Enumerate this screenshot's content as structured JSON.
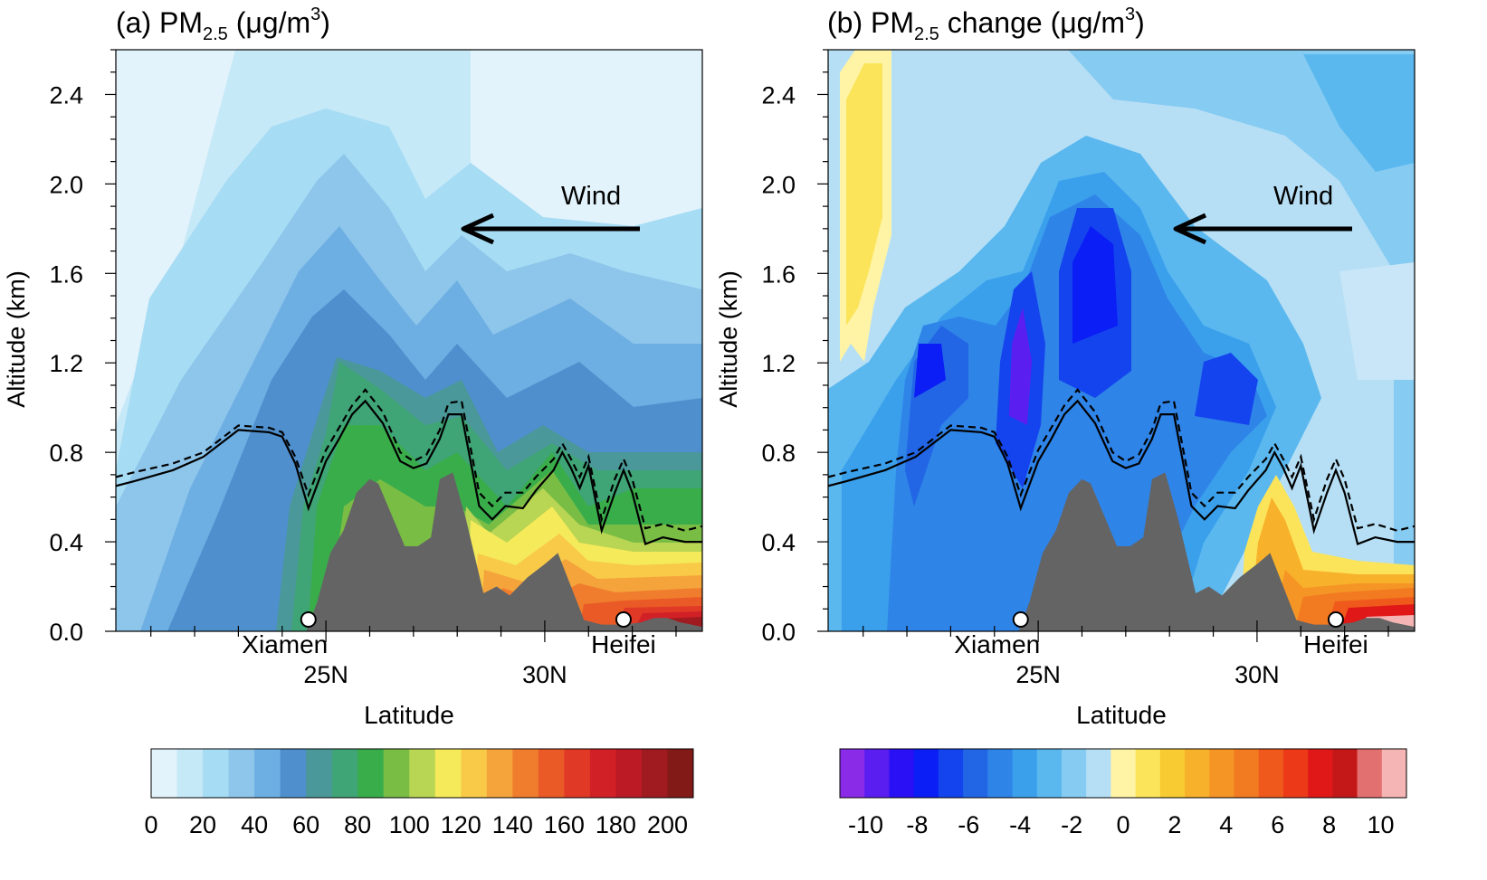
{
  "chart_data": [
    {
      "type": "heatmap",
      "title": {
        "prefix": "(a) PM",
        "sub": "2.5",
        "unit": " (μg/m",
        "sup": "3",
        "close": ")"
      },
      "xlabel": "Latitude",
      "ylabel": "Altitude (km)",
      "xlim": [
        20.2,
        33.6
      ],
      "ylim": [
        0,
        2.6
      ],
      "xticks": [
        {
          "v": 25,
          "label": "25N"
        },
        {
          "v": 30,
          "label": "30N"
        }
      ],
      "yticks": [
        {
          "v": 0.0,
          "label": "0.0"
        },
        {
          "v": 0.4,
          "label": "0.4"
        },
        {
          "v": 0.8,
          "label": "0.8"
        },
        {
          "v": 1.2,
          "label": "1.2"
        },
        {
          "v": 1.6,
          "label": "1.6"
        },
        {
          "v": 2.0,
          "label": "2.0"
        },
        {
          "v": 2.4,
          "label": "2.4"
        }
      ],
      "sites": [
        {
          "name": "Xiamen",
          "lat": 24.6
        },
        {
          "name": "Heifei",
          "lat": 31.8
        }
      ],
      "annotation": "Wind",
      "colorbar": {
        "levels": [
          0,
          10,
          20,
          30,
          40,
          50,
          60,
          70,
          80,
          90,
          100,
          110,
          120,
          130,
          140,
          150,
          160,
          170,
          180,
          190,
          200,
          210
        ],
        "labels": [
          "0",
          "20",
          "40",
          "60",
          "80",
          "100",
          "120",
          "140",
          "160",
          "180",
          "200"
        ],
        "colors": [
          "#e3f3fb",
          "#c6e9f8",
          "#a6dcf4",
          "#8ec6eb",
          "#6daee3",
          "#4f8fcd",
          "#4a9899",
          "#3fa476",
          "#3aad4b",
          "#79bd45",
          "#b8d554",
          "#f5ea5a",
          "#f8ca48",
          "#f5a43b",
          "#f07d2d",
          "#e95a26",
          "#e03a26",
          "#d22027",
          "#bc1a24",
          "#a01b1f",
          "#821a18"
        ]
      },
      "profile": {
        "description": "cross-section field, latitude vs altitude"
      }
    },
    {
      "type": "heatmap",
      "title": {
        "prefix": "(b) PM",
        "sub": "2.5",
        "unit": " change (μg/m",
        "sup": "3",
        "close": ")"
      },
      "xlabel": "Latitude",
      "ylabel": "Altitude (km)",
      "xlim": [
        20.2,
        33.6
      ],
      "ylim": [
        0,
        2.6
      ],
      "xticks": [
        {
          "v": 25,
          "label": "25N"
        },
        {
          "v": 30,
          "label": "30N"
        }
      ],
      "yticks": [
        {
          "v": 0.0,
          "label": "0.0"
        },
        {
          "v": 0.4,
          "label": "0.4"
        },
        {
          "v": 0.8,
          "label": "0.8"
        },
        {
          "v": 1.2,
          "label": "1.2"
        },
        {
          "v": 1.6,
          "label": "1.6"
        },
        {
          "v": 2.0,
          "label": "2.0"
        },
        {
          "v": 2.4,
          "label": "2.4"
        }
      ],
      "sites": [
        {
          "name": "Xiamen",
          "lat": 24.6
        },
        {
          "name": "Heifei",
          "lat": 31.8
        }
      ],
      "annotation": "Wind",
      "colorbar": {
        "levels": [
          -11,
          -10,
          -9,
          -8,
          -7,
          -6,
          -5,
          -4,
          -3,
          -2,
          -1,
          0,
          1,
          2,
          3,
          4,
          5,
          6,
          7,
          8,
          9,
          10,
          11
        ],
        "labels": [
          "-10",
          "-8",
          "-6",
          "-4",
          "-2",
          "0",
          "2",
          "4",
          "6",
          "8",
          "10"
        ],
        "colors": [
          "#8a2be8",
          "#5a1ef0",
          "#2a10f5",
          "#0a1ef5",
          "#1444ee",
          "#2266e6",
          "#2f84e8",
          "#3aa0ec",
          "#5ab8ef",
          "#86cbf2",
          "#b6dff5",
          "#fff4a6",
          "#fbe45a",
          "#f9cb32",
          "#f8b12a",
          "#f59526",
          "#f27a20",
          "#ef5a1c",
          "#ec3a18",
          "#e01818",
          "#c41818",
          "#e27070",
          "#f6b5b5"
        ]
      },
      "profile": {
        "description": "cross-section change field, latitude vs altitude"
      }
    }
  ],
  "lines": {
    "solid": [
      [
        20.2,
        0.65
      ],
      [
        20.6,
        0.67
      ],
      [
        21.5,
        0.72
      ],
      [
        22.2,
        0.78
      ],
      [
        23.0,
        0.9
      ],
      [
        23.7,
        0.89
      ],
      [
        24.0,
        0.87
      ],
      [
        24.3,
        0.75
      ],
      [
        24.6,
        0.55
      ],
      [
        25.0,
        0.76
      ],
      [
        25.3,
        0.86
      ],
      [
        25.6,
        0.97
      ],
      [
        25.9,
        1.03
      ],
      [
        26.3,
        0.93
      ],
      [
        26.7,
        0.76
      ],
      [
        27.0,
        0.73
      ],
      [
        27.3,
        0.75
      ],
      [
        27.6,
        0.86
      ],
      [
        27.8,
        0.97
      ],
      [
        28.1,
        0.97
      ],
      [
        28.5,
        0.56
      ],
      [
        28.8,
        0.5
      ],
      [
        29.1,
        0.56
      ],
      [
        29.5,
        0.55
      ],
      [
        29.8,
        0.63
      ],
      [
        30.2,
        0.72
      ],
      [
        30.4,
        0.8
      ],
      [
        30.6,
        0.73
      ],
      [
        30.8,
        0.64
      ],
      [
        31.0,
        0.74
      ],
      [
        31.3,
        0.45
      ],
      [
        31.6,
        0.62
      ],
      [
        31.8,
        0.72
      ],
      [
        32.0,
        0.62
      ],
      [
        32.3,
        0.39
      ],
      [
        32.7,
        0.42
      ],
      [
        33.2,
        0.4
      ],
      [
        33.6,
        0.4
      ]
    ],
    "dashed": [
      [
        20.2,
        0.69
      ],
      [
        20.6,
        0.71
      ],
      [
        21.5,
        0.75
      ],
      [
        22.2,
        0.8
      ],
      [
        23.0,
        0.92
      ],
      [
        23.7,
        0.91
      ],
      [
        24.0,
        0.89
      ],
      [
        24.3,
        0.78
      ],
      [
        24.6,
        0.61
      ],
      [
        25.0,
        0.81
      ],
      [
        25.3,
        0.91
      ],
      [
        25.6,
        1.01
      ],
      [
        25.9,
        1.08
      ],
      [
        26.3,
        0.98
      ],
      [
        26.7,
        0.8
      ],
      [
        27.0,
        0.76
      ],
      [
        27.3,
        0.79
      ],
      [
        27.6,
        0.9
      ],
      [
        27.8,
        1.02
      ],
      [
        28.1,
        1.03
      ],
      [
        28.5,
        0.62
      ],
      [
        28.8,
        0.56
      ],
      [
        29.1,
        0.62
      ],
      [
        29.5,
        0.62
      ],
      [
        29.8,
        0.69
      ],
      [
        30.2,
        0.77
      ],
      [
        30.4,
        0.84
      ],
      [
        30.6,
        0.77
      ],
      [
        30.8,
        0.69
      ],
      [
        31.0,
        0.78
      ],
      [
        31.3,
        0.5
      ],
      [
        31.6,
        0.68
      ],
      [
        31.8,
        0.77
      ],
      [
        32.0,
        0.68
      ],
      [
        32.3,
        0.46
      ],
      [
        32.7,
        0.48
      ],
      [
        33.2,
        0.45
      ],
      [
        33.6,
        0.47
      ]
    ]
  },
  "terrain": [
    [
      24.55,
      0.0
    ],
    [
      24.8,
      0.13
    ],
    [
      25.1,
      0.35
    ],
    [
      25.4,
      0.45
    ],
    [
      25.7,
      0.62
    ],
    [
      26.0,
      0.68
    ],
    [
      26.2,
      0.66
    ],
    [
      26.5,
      0.52
    ],
    [
      26.8,
      0.38
    ],
    [
      27.1,
      0.38
    ],
    [
      27.4,
      0.42
    ],
    [
      27.6,
      0.68
    ],
    [
      27.9,
      0.71
    ],
    [
      28.2,
      0.5
    ],
    [
      28.6,
      0.17
    ],
    [
      28.9,
      0.2
    ],
    [
      29.2,
      0.16
    ],
    [
      29.6,
      0.24
    ],
    [
      30.0,
      0.3
    ],
    [
      30.3,
      0.35
    ],
    [
      30.6,
      0.2
    ],
    [
      30.9,
      0.05
    ],
    [
      31.3,
      0.03
    ],
    [
      31.8,
      0.03
    ],
    [
      32.2,
      0.04
    ],
    [
      32.5,
      0.06
    ],
    [
      32.8,
      0.06
    ],
    [
      33.1,
      0.04
    ],
    [
      33.6,
      0.02
    ],
    [
      33.6,
      0.0
    ]
  ]
}
